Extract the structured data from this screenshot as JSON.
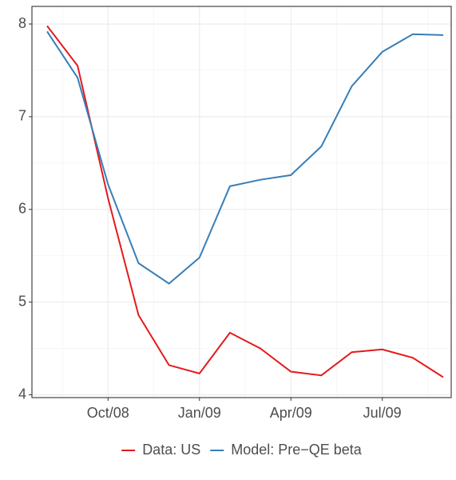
{
  "chart_data": {
    "type": "line",
    "categories": [
      null,
      null,
      "Oct/08",
      null,
      null,
      "Jan/09",
      null,
      null,
      "Apr/09",
      null,
      null,
      "Jul/09",
      null,
      null
    ],
    "series": [
      {
        "name": "Data: US",
        "color": "#e41a1c",
        "values": [
          7.98,
          7.55,
          6.12,
          4.86,
          4.32,
          4.23,
          4.67,
          4.5,
          4.25,
          4.21,
          4.46,
          4.49,
          4.4,
          4.19
        ]
      },
      {
        "name": "Model: Pre−QE beta",
        "color": "#377eb8",
        "values": [
          7.92,
          7.42,
          6.27,
          5.42,
          5.2,
          5.48,
          6.25,
          6.32,
          6.37,
          6.68,
          7.33,
          7.7,
          7.89,
          7.88
        ]
      }
    ],
    "ylim": [
      3.97,
      8.19
    ],
    "yticks": [
      4,
      5,
      6,
      7,
      8
    ],
    "grid": true,
    "legend": "bottom"
  }
}
